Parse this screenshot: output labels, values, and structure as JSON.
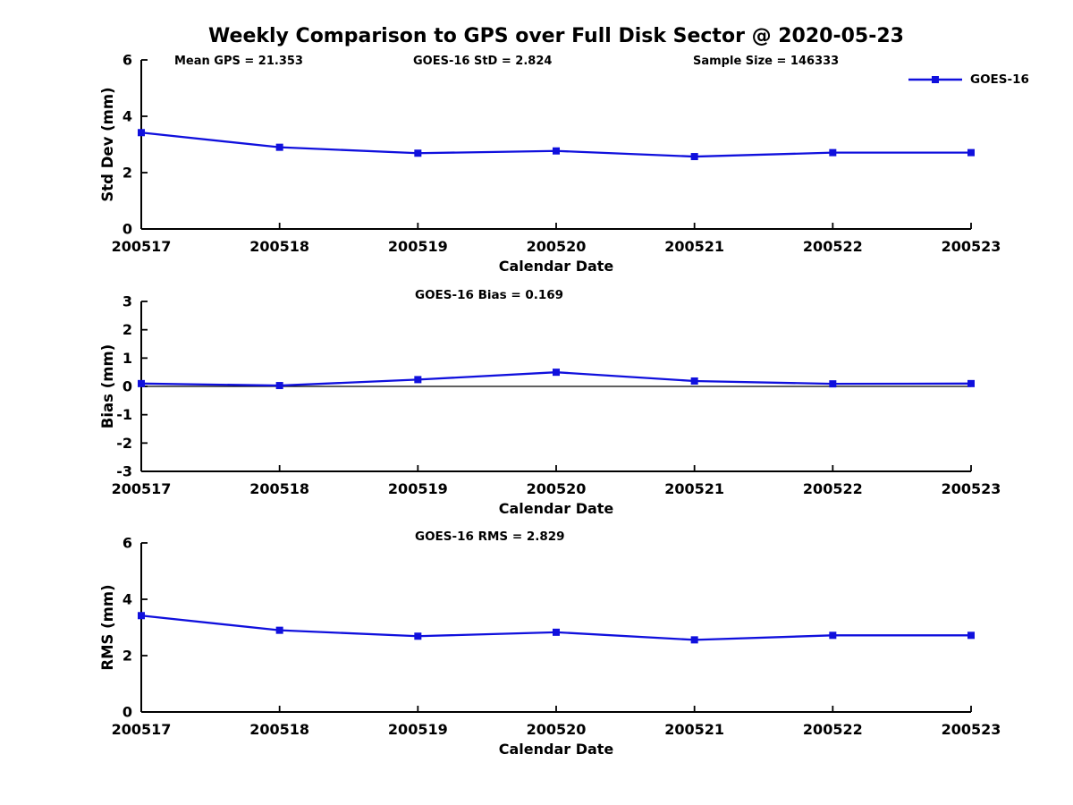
{
  "title": "Weekly Comparison to GPS over Full Disk Sector @ 2020-05-23",
  "header_annotations": [
    {
      "label": "Mean GPS = 21.353"
    },
    {
      "label": "GOES-16 StD = 2.824"
    },
    {
      "label": "Sample Size = 146333"
    }
  ],
  "legend": {
    "label": "GOES-16"
  },
  "colors": {
    "series": "#1010DD",
    "axis": "#000000",
    "text": "#000000",
    "background": "#FFFFFF"
  },
  "chart_data": [
    {
      "type": "line",
      "id": "std-dev",
      "title": "",
      "xlabel": "Calendar Date",
      "ylabel": "Std Dev (mm)",
      "categories": [
        "200517",
        "200518",
        "200519",
        "200520",
        "200521",
        "200522",
        "200523"
      ],
      "series": [
        {
          "name": "GOES-16",
          "values": [
            3.42,
            2.9,
            2.69,
            2.77,
            2.57,
            2.71,
            2.71
          ]
        }
      ],
      "ylim": [
        0,
        6
      ],
      "yticks": [
        0,
        2,
        4,
        6
      ],
      "zero_line": false,
      "grid": false,
      "legend_position": "top-right"
    },
    {
      "type": "line",
      "id": "bias",
      "title": "GOES-16 Bias  = 0.169",
      "xlabel": "Calendar Date",
      "ylabel": "Bias (mm)",
      "categories": [
        "200517",
        "200518",
        "200519",
        "200520",
        "200521",
        "200522",
        "200523"
      ],
      "series": [
        {
          "name": "GOES-16",
          "values": [
            0.1,
            0.03,
            0.24,
            0.5,
            0.19,
            0.09,
            0.1
          ]
        }
      ],
      "ylim": [
        -3,
        3
      ],
      "yticks": [
        -3,
        -2,
        -1,
        0,
        1,
        2,
        3
      ],
      "zero_line": true,
      "grid": false,
      "legend_position": "none"
    },
    {
      "type": "line",
      "id": "rms",
      "title": "GOES-16 RMS = 2.829",
      "xlabel": "Calendar Date",
      "ylabel": "RMS (mm)",
      "categories": [
        "200517",
        "200518",
        "200519",
        "200520",
        "200521",
        "200522",
        "200523"
      ],
      "series": [
        {
          "name": "GOES-16",
          "values": [
            3.42,
            2.9,
            2.69,
            2.83,
            2.56,
            2.72,
            2.72
          ]
        }
      ],
      "ylim": [
        0,
        6
      ],
      "yticks": [
        0,
        2,
        4,
        6
      ],
      "zero_line": false,
      "grid": false,
      "legend_position": "none"
    }
  ]
}
